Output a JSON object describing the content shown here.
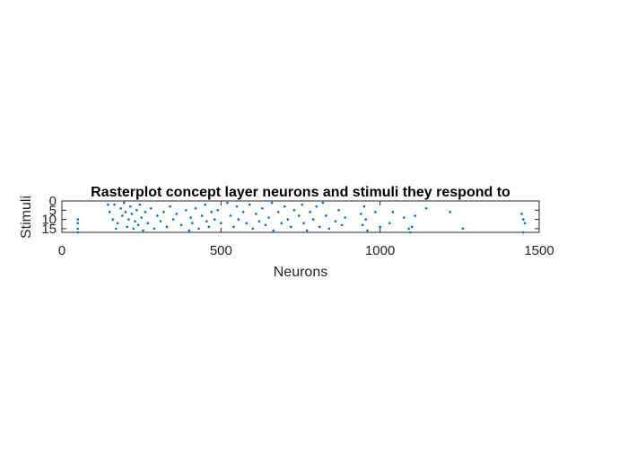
{
  "chart_data": {
    "type": "scatter",
    "title": "Rasterplot concept layer neurons and stimuli they respond to",
    "xlabel": "Neurons",
    "ylabel": "Stimuli",
    "xlim": [
      0,
      1500
    ],
    "ylim": [
      0,
      17
    ],
    "y_direction": "reversed",
    "xticks": [
      "0",
      "500",
      "1000",
      "1500"
    ],
    "yticks": [
      "0",
      "5",
      "10",
      "15"
    ],
    "grid": false,
    "legend": "none",
    "marker_color": "#0072bd",
    "series": [
      {
        "points": [
          [
            50,
            10
          ],
          [
            50,
            12
          ],
          [
            50,
            15
          ],
          [
            50,
            17
          ],
          [
            145,
            2
          ],
          [
            150,
            6
          ],
          [
            160,
            10
          ],
          [
            165,
            2
          ],
          [
            170,
            15
          ],
          [
            175,
            12
          ],
          [
            185,
            4
          ],
          [
            190,
            8
          ],
          [
            195,
            1
          ],
          [
            200,
            6
          ],
          [
            205,
            14
          ],
          [
            210,
            10
          ],
          [
            215,
            3
          ],
          [
            220,
            7
          ],
          [
            225,
            15
          ],
          [
            230,
            11
          ],
          [
            235,
            5
          ],
          [
            240,
            13
          ],
          [
            245,
            2
          ],
          [
            250,
            9
          ],
          [
            255,
            16
          ],
          [
            262,
            6
          ],
          [
            270,
            12
          ],
          [
            280,
            4
          ],
          [
            290,
            15
          ],
          [
            300,
            8
          ],
          [
            310,
            11
          ],
          [
            320,
            6
          ],
          [
            330,
            14
          ],
          [
            340,
            3
          ],
          [
            350,
            10
          ],
          [
            360,
            7
          ],
          [
            375,
            13
          ],
          [
            390,
            5
          ],
          [
            400,
            16
          ],
          [
            405,
            9
          ],
          [
            410,
            12
          ],
          [
            420,
            4
          ],
          [
            430,
            15
          ],
          [
            440,
            8
          ],
          [
            450,
            2
          ],
          [
            455,
            11
          ],
          [
            462,
            14
          ],
          [
            470,
            6
          ],
          [
            480,
            10
          ],
          [
            490,
            5
          ],
          [
            500,
            12
          ],
          [
            520,
            1
          ],
          [
            530,
            8
          ],
          [
            540,
            14
          ],
          [
            550,
            3
          ],
          [
            555,
            10
          ],
          [
            570,
            6
          ],
          [
            580,
            12
          ],
          [
            590,
            2
          ],
          [
            600,
            15
          ],
          [
            610,
            7
          ],
          [
            620,
            11
          ],
          [
            630,
            4
          ],
          [
            640,
            13
          ],
          [
            650,
            9
          ],
          [
            660,
            1
          ],
          [
            665,
            16
          ],
          [
            680,
            6
          ],
          [
            690,
            12
          ],
          [
            700,
            3
          ],
          [
            710,
            10
          ],
          [
            720,
            14
          ],
          [
            730,
            5
          ],
          [
            745,
            8
          ],
          [
            755,
            2
          ],
          [
            760,
            12
          ],
          [
            770,
            16
          ],
          [
            780,
            6
          ],
          [
            790,
            10
          ],
          [
            800,
            3
          ],
          [
            810,
            14
          ],
          [
            820,
            1
          ],
          [
            830,
            8
          ],
          [
            840,
            15
          ],
          [
            860,
            11
          ],
          [
            870,
            5
          ],
          [
            880,
            13
          ],
          [
            890,
            9
          ],
          [
            940,
            7
          ],
          [
            945,
            13
          ],
          [
            950,
            3
          ],
          [
            955,
            10
          ],
          [
            960,
            16
          ],
          [
            985,
            6
          ],
          [
            1000,
            14
          ],
          [
            1030,
            12
          ],
          [
            1040,
            6
          ],
          [
            1075,
            9
          ],
          [
            1090,
            15
          ],
          [
            1095,
            17
          ],
          [
            1100,
            14
          ],
          [
            1110,
            8
          ],
          [
            1145,
            4
          ],
          [
            1220,
            6
          ],
          [
            1260,
            15
          ],
          [
            1445,
            7
          ],
          [
            1450,
            10
          ],
          [
            1455,
            12
          ],
          [
            1450,
            17
          ]
        ]
      }
    ]
  }
}
